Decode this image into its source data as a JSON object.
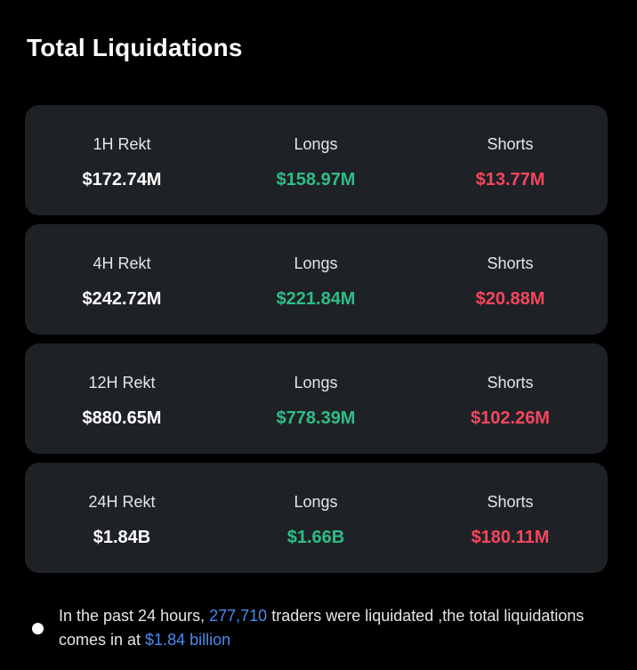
{
  "header": {
    "title": "Total Liquidations"
  },
  "rows": [
    {
      "period_label": "1H Rekt",
      "total": "$172.74M",
      "longs_label": "Longs",
      "longs": "$158.97M",
      "shorts_label": "Shorts",
      "shorts": "$13.77M"
    },
    {
      "period_label": "4H Rekt",
      "total": "$242.72M",
      "longs_label": "Longs",
      "longs": "$221.84M",
      "shorts_label": "Shorts",
      "shorts": "$20.88M"
    },
    {
      "period_label": "12H Rekt",
      "total": "$880.65M",
      "longs_label": "Longs",
      "longs": "$778.39M",
      "shorts_label": "Shorts",
      "shorts": "$102.26M"
    },
    {
      "period_label": "24H Rekt",
      "total": "$1.84B",
      "longs_label": "Longs",
      "longs": "$1.66B",
      "shorts_label": "Shorts",
      "shorts": "$180.11M"
    }
  ],
  "summary": {
    "part1": "In the past 24 hours, ",
    "traders_count": "277,710",
    "part2": " traders were liquidated ,the total liquidations comes in at ",
    "total_amount": "$1.84 billion"
  },
  "colors": {
    "background": "#000000",
    "card": "#1e2126",
    "longs": "#2ebd85",
    "shorts": "#f6465d",
    "highlight": "#4a8cf0"
  }
}
